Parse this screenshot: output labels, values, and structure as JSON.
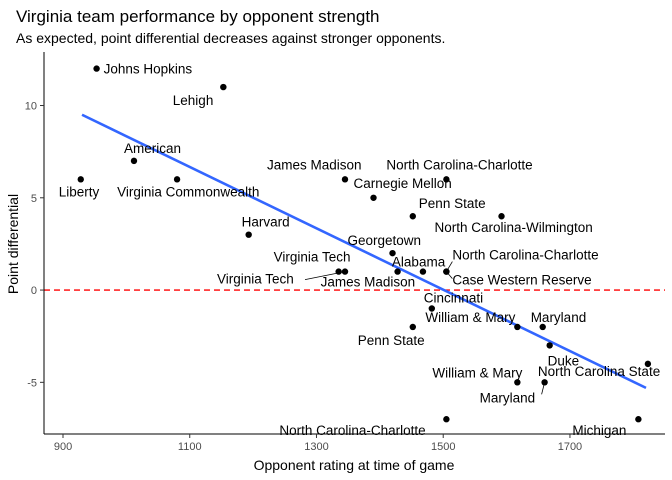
{
  "chart_data": {
    "type": "scatter",
    "title": "Virginia team performance by opponent strength",
    "subtitle": "As expected, point differential decreases against stronger opponents.",
    "xlabel": "Opponent rating at time of game",
    "ylabel": "Point differential",
    "xlim": [
      870,
      1850
    ],
    "ylim": [
      -7.8,
      12.9
    ],
    "x_ticks": [
      900,
      1100,
      1300,
      1500,
      1700
    ],
    "y_ticks": [
      -5,
      0,
      5,
      10
    ],
    "grid": false,
    "reference_line": {
      "y": 0,
      "color": "#ff0000",
      "style": "dashed"
    },
    "trend_line": {
      "x": [
        930,
        1820
      ],
      "y": [
        9.5,
        -5.3
      ],
      "color": "#3366ff"
    },
    "points": [
      {
        "x": 953,
        "y": 12,
        "label": "Johns Hopkins"
      },
      {
        "x": 1153,
        "y": 11,
        "label": "Lehigh"
      },
      {
        "x": 1012,
        "y": 7,
        "label": "American"
      },
      {
        "x": 928,
        "y": 6,
        "label": "Liberty"
      },
      {
        "x": 1080,
        "y": 6,
        "label": "Virginia Commonwealth"
      },
      {
        "x": 1345,
        "y": 6,
        "label": "James Madison"
      },
      {
        "x": 1505,
        "y": 6,
        "label": "North Carolina-Charlotte"
      },
      {
        "x": 1390,
        "y": 5,
        "label": "Carnegie Mellon"
      },
      {
        "x": 1452,
        "y": 4,
        "label": "Penn State"
      },
      {
        "x": 1592,
        "y": 4,
        "label": "North Carolina-Wilmington"
      },
      {
        "x": 1193,
        "y": 3,
        "label": "Harvard"
      },
      {
        "x": 1420,
        "y": 2,
        "label": "Georgetown"
      },
      {
        "x": 1335,
        "y": 1,
        "label": "Virginia Tech"
      },
      {
        "x": 1345,
        "y": 1,
        "label": "Virginia Tech"
      },
      {
        "x": 1428,
        "y": 1,
        "label": "James Madison"
      },
      {
        "x": 1468,
        "y": 1,
        "label": "Alabama"
      },
      {
        "x": 1505,
        "y": 1,
        "label": "North Carolina-Charlotte"
      },
      {
        "x": 1505,
        "y": 1,
        "label": "Case Western Reserve"
      },
      {
        "x": 1482,
        "y": -1,
        "label": "Cincinnati"
      },
      {
        "x": 1452,
        "y": -2,
        "label": "Penn State"
      },
      {
        "x": 1617,
        "y": -2,
        "label": "William & Mary"
      },
      {
        "x": 1657,
        "y": -2,
        "label": "Maryland"
      },
      {
        "x": 1668,
        "y": -3,
        "label": "Duke"
      },
      {
        "x": 1823,
        "y": -4,
        "label": "North Carolina State"
      },
      {
        "x": 1617,
        "y": -5,
        "label": "William & Mary"
      },
      {
        "x": 1660,
        "y": -5,
        "label": "Maryland"
      },
      {
        "x": 1505,
        "y": -7,
        "label": "North Carolina-Charlotte"
      },
      {
        "x": 1808,
        "y": -7,
        "label": "Michigan"
      }
    ]
  }
}
